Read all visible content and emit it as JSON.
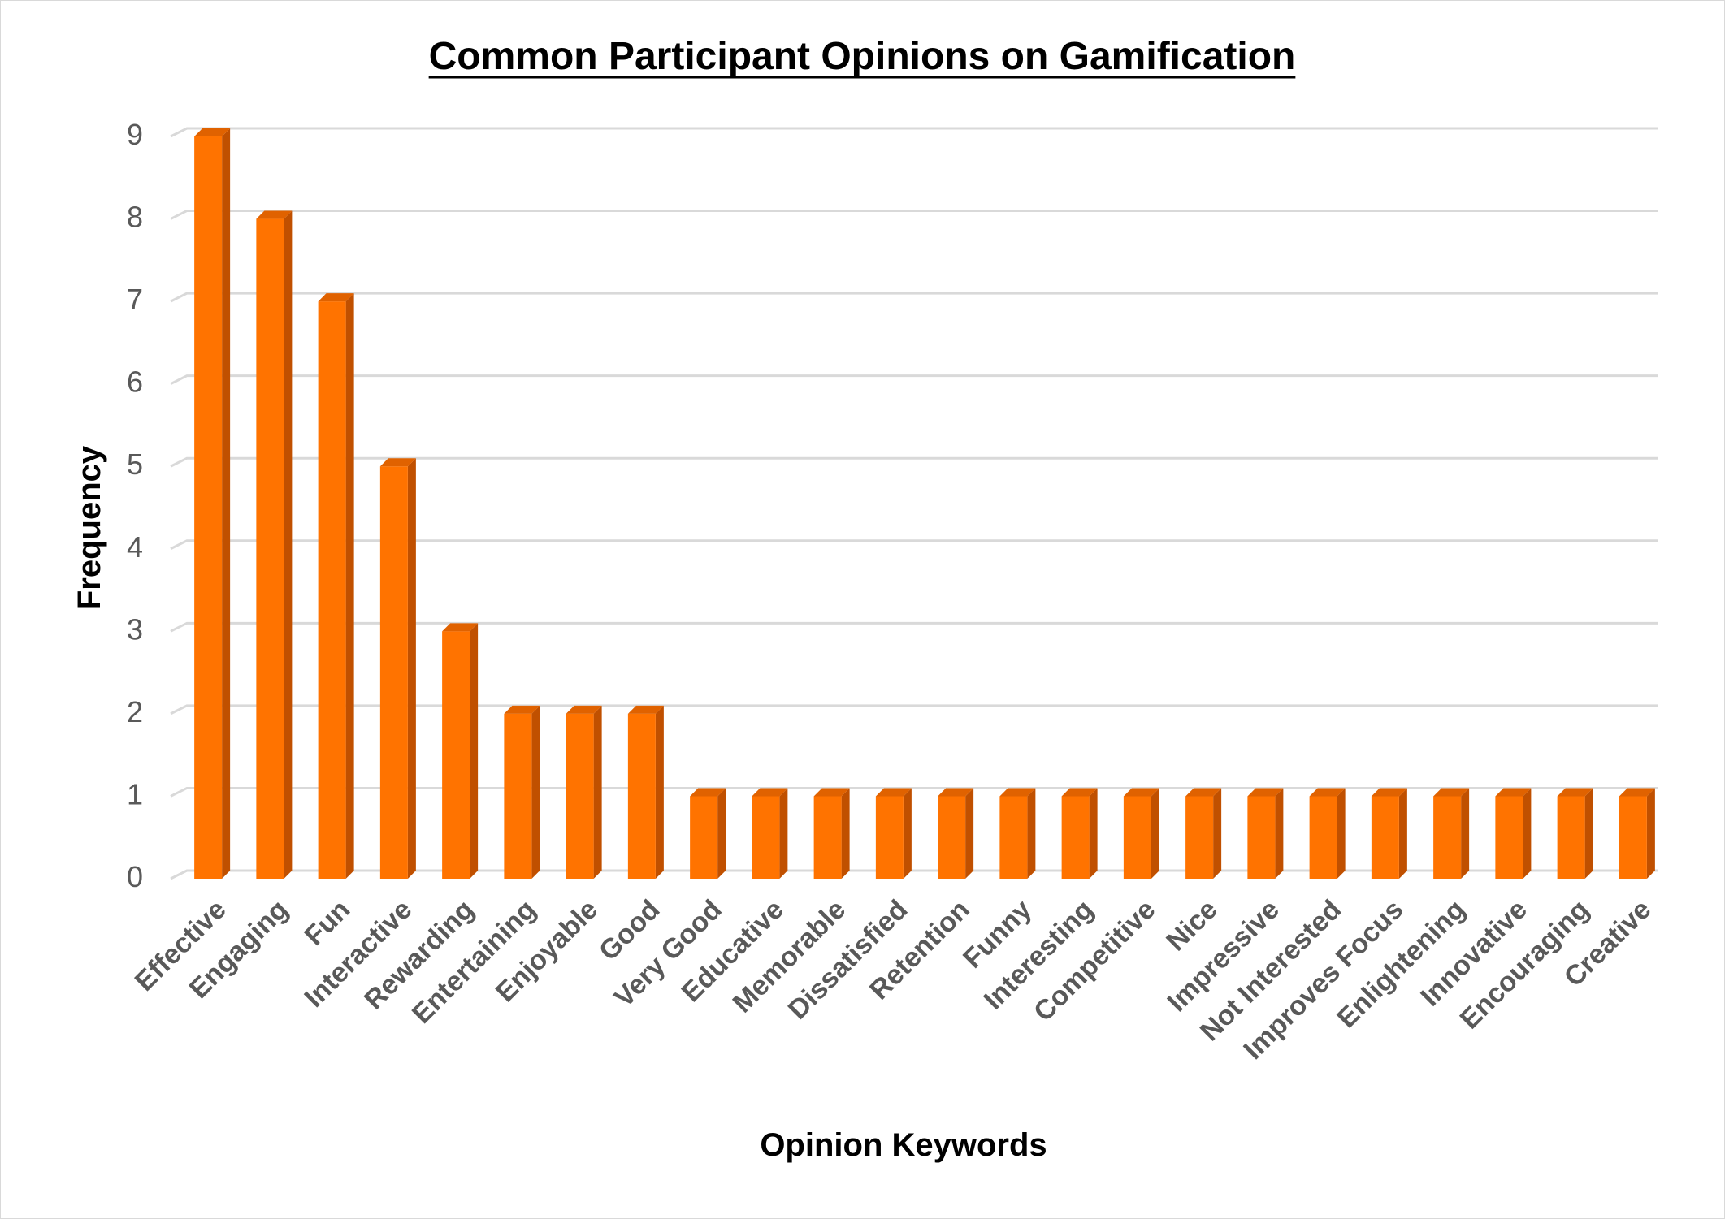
{
  "chart_data": {
    "type": "bar",
    "title": "Common Participant Opinions on Gamification",
    "xlabel": "Opinion Keywords",
    "ylabel": "Frequency",
    "ylim": [
      0,
      9
    ],
    "yticks": [
      "0",
      "1",
      "2",
      "3",
      "4",
      "5",
      "6",
      "7",
      "8",
      "9"
    ],
    "grid": true,
    "legend": "none",
    "categories": [
      "Effective",
      "Engaging",
      "Fun",
      "Interactive",
      "Rewarding",
      "Entertaining",
      "Enjoyable",
      "Good",
      "Very Good",
      "Educative",
      "Memorable",
      "Dissatisfied",
      "Retention",
      "Funny",
      "Interesting",
      "Competitive",
      "Nice",
      "Impressive",
      "Not Interested",
      "Improves Focus",
      "Enlightening",
      "Innovative",
      "Encouraging",
      "Creative"
    ],
    "values": [
      9,
      8,
      7,
      5,
      3,
      2,
      2,
      2,
      1,
      1,
      1,
      1,
      1,
      1,
      1,
      1,
      1,
      1,
      1,
      1,
      1,
      1,
      1,
      1
    ]
  },
  "colors": {
    "bar_front": "#ff7300",
    "bar_side": "#c05000",
    "bar_top": "#e06200",
    "grid": "#d9d9d9",
    "tick_text": "#595959"
  }
}
